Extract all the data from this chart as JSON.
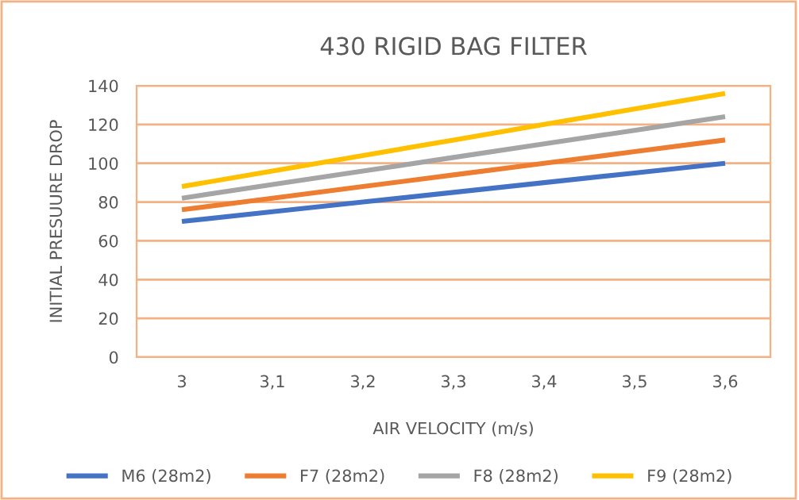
{
  "chart_data": {
    "type": "line",
    "title": "430 RIGID BAG FILTER",
    "xlabel": "AIR VELOCITY (m/s)",
    "ylabel": "INITIAL PRESUURE DROP",
    "categories": [
      "3",
      "3,1",
      "3,2",
      "3,3",
      "3,4",
      "3,5",
      "3,6"
    ],
    "series": [
      {
        "name": "M6 (28m2)",
        "color": "#4472c4",
        "values": [
          70,
          75,
          80,
          85,
          90,
          95,
          100
        ]
      },
      {
        "name": "F7 (28m2)",
        "color": "#ed7d31",
        "values": [
          76,
          82,
          88,
          94,
          100,
          106,
          112
        ]
      },
      {
        "name": "F8 (28m2)",
        "color": "#a5a5a5",
        "values": [
          82,
          89,
          96,
          103,
          110,
          117,
          124
        ]
      },
      {
        "name": "F9 (28m2)",
        "color": "#ffc000",
        "values": [
          88,
          96,
          104,
          112,
          120,
          128,
          136
        ]
      }
    ],
    "ylim": [
      0,
      140
    ],
    "yticks": [
      0,
      20,
      40,
      60,
      80,
      100,
      120,
      140
    ],
    "grid": "y",
    "legend": "bottom",
    "marker": "none",
    "line_style": "solid"
  }
}
